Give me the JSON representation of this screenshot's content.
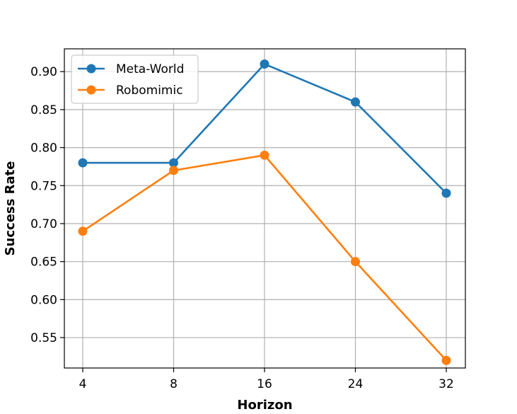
{
  "chart_data": {
    "type": "line",
    "title": "",
    "xlabel": "Horizon",
    "ylabel": "Success Rate",
    "categories": [
      "4",
      "8",
      "16",
      "24",
      "32"
    ],
    "y_ticks": [
      "0.55",
      "0.60",
      "0.65",
      "0.70",
      "0.75",
      "0.80",
      "0.85",
      "0.90"
    ],
    "ylim": [
      0.51,
      0.93
    ],
    "grid": true,
    "legend_position": "upper left",
    "series": [
      {
        "name": "Meta-World",
        "color": "#1f77b4",
        "values": [
          0.78,
          0.78,
          0.91,
          0.86,
          0.74
        ]
      },
      {
        "name": "Robomimic",
        "color": "#ff7f0e",
        "values": [
          0.69,
          0.77,
          0.79,
          0.65,
          0.52
        ]
      }
    ]
  }
}
